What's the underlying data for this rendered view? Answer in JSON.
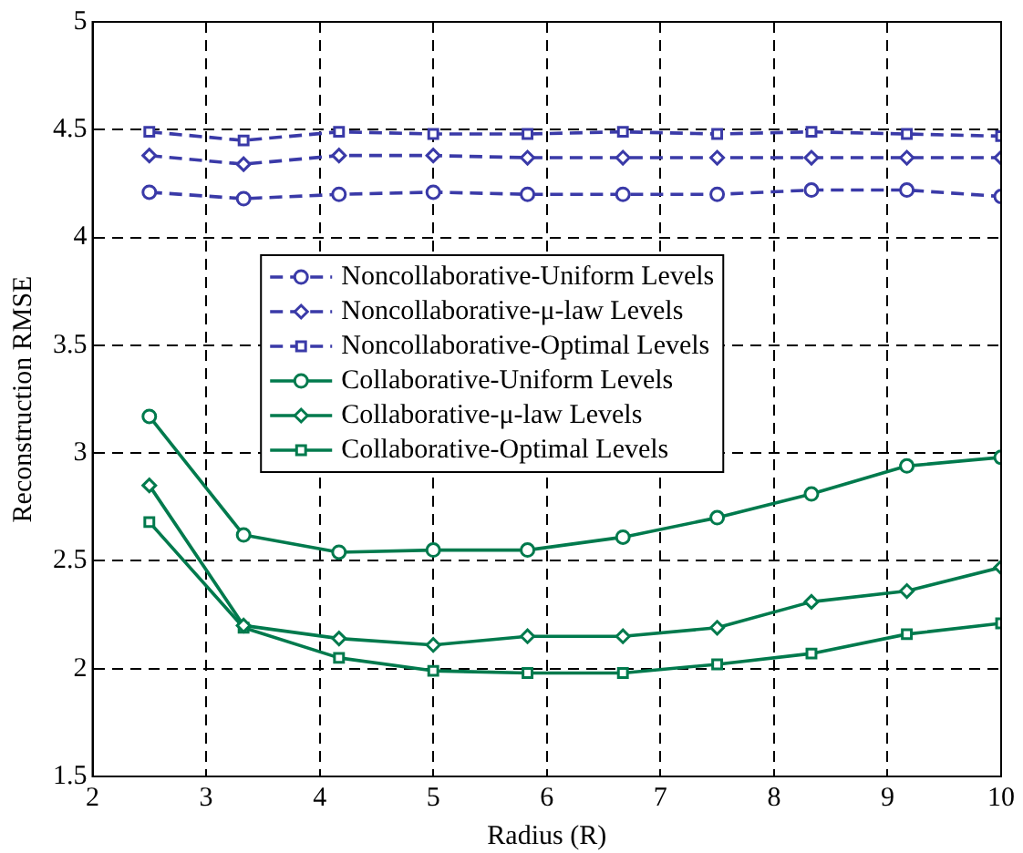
{
  "chart_data": {
    "type": "line",
    "xlabel": "Radius (R)",
    "ylabel": "Reconstruction RMSE",
    "x": [
      2.5,
      3.33,
      4.17,
      5,
      5.83,
      6.67,
      7.5,
      8.33,
      9.17,
      10
    ],
    "series": [
      {
        "name": "Noncollaborative-Uniform Levels",
        "color": "#3a3aa8",
        "marker": "circle",
        "line_style": "dashed",
        "values": [
          4.21,
          4.18,
          4.2,
          4.21,
          4.2,
          4.2,
          4.2,
          4.22,
          4.22,
          4.19
        ]
      },
      {
        "name": "Noncollaborative-μ-law Levels",
        "color": "#3a3aa8",
        "marker": "diamond",
        "line_style": "dashed",
        "values": [
          4.38,
          4.34,
          4.38,
          4.38,
          4.37,
          4.37,
          4.37,
          4.37,
          4.37,
          4.37
        ]
      },
      {
        "name": "Noncollaborative-Optimal Levels",
        "color": "#3a3aa8",
        "marker": "square",
        "line_style": "dashed",
        "values": [
          4.49,
          4.45,
          4.49,
          4.48,
          4.48,
          4.49,
          4.48,
          4.49,
          4.48,
          4.47
        ]
      },
      {
        "name": "Collaborative-Uniform Levels",
        "color": "#007a4d",
        "marker": "circle",
        "line_style": "solid",
        "values": [
          3.17,
          2.62,
          2.54,
          2.55,
          2.55,
          2.61,
          2.7,
          2.81,
          2.94,
          2.98
        ]
      },
      {
        "name": "Collaborative-μ-law Levels",
        "color": "#007a4d",
        "marker": "diamond",
        "line_style": "solid",
        "values": [
          2.85,
          2.2,
          2.14,
          2.11,
          2.15,
          2.15,
          2.19,
          2.31,
          2.36,
          2.47
        ]
      },
      {
        "name": "Collaborative-Optimal Levels",
        "color": "#007a4d",
        "marker": "square",
        "line_style": "solid",
        "values": [
          2.68,
          2.19,
          2.05,
          1.99,
          1.98,
          1.98,
          2.02,
          2.07,
          2.16,
          2.21
        ]
      }
    ],
    "xlim": [
      2,
      10
    ],
    "xticks": [
      2,
      3,
      4,
      5,
      6,
      7,
      8,
      9,
      10
    ],
    "ylim": [
      1.5,
      5
    ],
    "yticks": [
      1.5,
      2,
      2.5,
      3,
      3.5,
      4,
      4.5,
      5
    ],
    "grid": true,
    "legend": "top"
  }
}
